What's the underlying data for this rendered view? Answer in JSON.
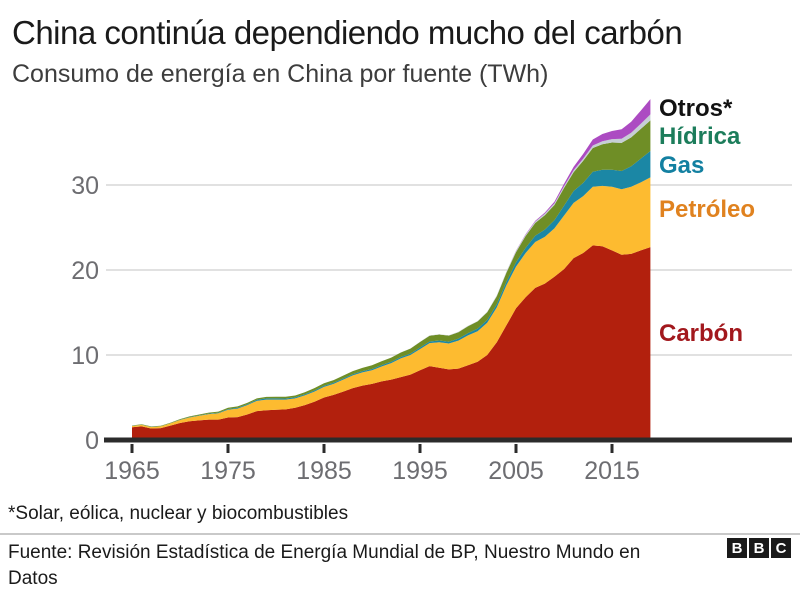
{
  "header": {
    "title": "China continúa dependiendo mucho del carbón",
    "subtitle": "Consumo de energía en China por fuente (TWh)"
  },
  "colors": {
    "gridline": "#e1e1e1",
    "axis": "#2b2b2b",
    "tick_label": "#6d6d71",
    "background": "#ffffff"
  },
  "chart_data": {
    "type": "area",
    "stacked": true,
    "title": "China continúa dependiendo mucho del carbón",
    "subtitle": "Consumo de energía en China por fuente (TWh)",
    "xlabel": "",
    "ylabel": "",
    "ylim": [
      0,
      40
    ],
    "grid": "horizontal",
    "legend_position": "right",
    "yticks": [
      0,
      10,
      20,
      30
    ],
    "xticks": [
      1965,
      1975,
      1985,
      1995,
      2005,
      2015
    ],
    "x": [
      1965,
      1966,
      1967,
      1968,
      1969,
      1970,
      1971,
      1972,
      1973,
      1974,
      1975,
      1976,
      1977,
      1978,
      1979,
      1980,
      1981,
      1982,
      1983,
      1984,
      1985,
      1986,
      1987,
      1988,
      1989,
      1990,
      1991,
      1992,
      1993,
      1994,
      1995,
      1996,
      1997,
      1998,
      1999,
      2000,
      2001,
      2002,
      2003,
      2004,
      2005,
      2006,
      2007,
      2008,
      2009,
      2010,
      2011,
      2012,
      2013,
      2014,
      2015,
      2016,
      2017,
      2018,
      2019
    ],
    "series": [
      {
        "id": "carbon",
        "name": "Carbón",
        "color": "#b2200d",
        "values": [
          1.5,
          1.6,
          1.35,
          1.4,
          1.7,
          2.0,
          2.2,
          2.3,
          2.4,
          2.4,
          2.65,
          2.7,
          3.0,
          3.4,
          3.5,
          3.55,
          3.6,
          3.8,
          4.1,
          4.5,
          5.0,
          5.3,
          5.7,
          6.1,
          6.4,
          6.6,
          6.9,
          7.1,
          7.4,
          7.7,
          8.2,
          8.7,
          8.5,
          8.3,
          8.4,
          8.8,
          9.2,
          10.0,
          11.5,
          13.5,
          15.5,
          16.8,
          17.9,
          18.4,
          19.2,
          20.1,
          21.4,
          22.0,
          22.9,
          22.8,
          22.3,
          21.8,
          21.9,
          22.3,
          22.7
        ]
      },
      {
        "id": "petroleo",
        "name": "Petróleo",
        "color": "#fdbb30",
        "values": [
          0.15,
          0.18,
          0.18,
          0.2,
          0.25,
          0.35,
          0.45,
          0.55,
          0.65,
          0.75,
          0.9,
          1.0,
          1.1,
          1.2,
          1.25,
          1.2,
          1.15,
          1.1,
          1.15,
          1.2,
          1.25,
          1.3,
          1.4,
          1.5,
          1.55,
          1.6,
          1.75,
          1.95,
          2.2,
          2.3,
          2.5,
          2.7,
          3.0,
          3.05,
          3.3,
          3.5,
          3.6,
          3.8,
          4.1,
          4.7,
          4.9,
          5.2,
          5.4,
          5.5,
          5.7,
          6.3,
          6.5,
          6.7,
          6.9,
          7.1,
          7.5,
          7.7,
          7.9,
          8.0,
          8.2
        ]
      },
      {
        "id": "gas",
        "name": "Gas",
        "color": "#1b87a5",
        "values": [
          0.02,
          0.02,
          0.02,
          0.02,
          0.03,
          0.03,
          0.04,
          0.05,
          0.06,
          0.07,
          0.09,
          0.1,
          0.11,
          0.13,
          0.14,
          0.14,
          0.13,
          0.12,
          0.12,
          0.12,
          0.13,
          0.13,
          0.14,
          0.14,
          0.15,
          0.15,
          0.16,
          0.16,
          0.17,
          0.17,
          0.18,
          0.19,
          0.21,
          0.21,
          0.23,
          0.28,
          0.3,
          0.32,
          0.36,
          0.42,
          0.5,
          0.6,
          0.73,
          0.85,
          0.95,
          1.15,
          1.4,
          1.55,
          1.75,
          1.9,
          2.0,
          2.15,
          2.4,
          2.8,
          3.1
        ]
      },
      {
        "id": "hidrica",
        "name": "Hídrica",
        "color": "#6f8e26",
        "values": [
          0.04,
          0.05,
          0.05,
          0.05,
          0.06,
          0.08,
          0.09,
          0.1,
          0.11,
          0.12,
          0.15,
          0.15,
          0.16,
          0.17,
          0.18,
          0.2,
          0.21,
          0.22,
          0.25,
          0.28,
          0.3,
          0.32,
          0.34,
          0.36,
          0.38,
          0.45,
          0.45,
          0.48,
          0.52,
          0.58,
          0.65,
          0.68,
          0.7,
          0.72,
          0.75,
          0.8,
          0.85,
          0.9,
          0.95,
          1.05,
          1.2,
          1.4,
          1.5,
          1.7,
          1.8,
          2.1,
          2.2,
          2.6,
          2.8,
          3.0,
          3.2,
          3.3,
          3.4,
          3.5,
          3.6
        ]
      },
      {
        "id": "otros-nuclear",
        "name": "Otros* (nuclear)",
        "color": "#c6cfd4",
        "values": [
          0,
          0,
          0,
          0,
          0,
          0,
          0,
          0,
          0,
          0,
          0,
          0,
          0,
          0,
          0,
          0,
          0,
          0,
          0,
          0,
          0,
          0,
          0,
          0,
          0,
          0,
          0,
          0,
          0.01,
          0.02,
          0.03,
          0.04,
          0.04,
          0.04,
          0.05,
          0.05,
          0.05,
          0.07,
          0.12,
          0.14,
          0.15,
          0.15,
          0.17,
          0.18,
          0.19,
          0.2,
          0.23,
          0.26,
          0.3,
          0.35,
          0.4,
          0.5,
          0.55,
          0.6,
          0.7
        ]
      },
      {
        "id": "otros-renovables",
        "name": "Otros* (solar, eólica, bio)",
        "color": "#ac4bc2",
        "values": [
          0,
          0,
          0,
          0,
          0,
          0,
          0,
          0,
          0,
          0,
          0,
          0,
          0,
          0,
          0,
          0,
          0,
          0,
          0,
          0,
          0,
          0,
          0,
          0,
          0,
          0,
          0,
          0,
          0,
          0,
          0,
          0,
          0,
          0,
          0,
          0,
          0,
          0,
          0,
          0,
          0.03,
          0.05,
          0.08,
          0.12,
          0.18,
          0.28,
          0.4,
          0.55,
          0.7,
          0.85,
          0.95,
          1.1,
          1.3,
          1.55,
          1.8
        ]
      }
    ],
    "legend": [
      {
        "label": "Otros*",
        "color": "#121212"
      },
      {
        "label": "Hídrica",
        "color": "#1c7d5b"
      },
      {
        "label": "Gas",
        "color": "#1380a1"
      },
      {
        "label": "Petróleo",
        "color": "#e0821f"
      },
      {
        "label": "Carbón",
        "color": "#a2181d"
      }
    ]
  },
  "footer": {
    "footnote": "*Solar, eólica, nuclear y biocombustibles",
    "source": "Fuente: Revisión Estadística de Energía Mundial de BP, Nuestro Mundo en Datos",
    "bbc_letters": [
      "B",
      "B",
      "C"
    ]
  }
}
